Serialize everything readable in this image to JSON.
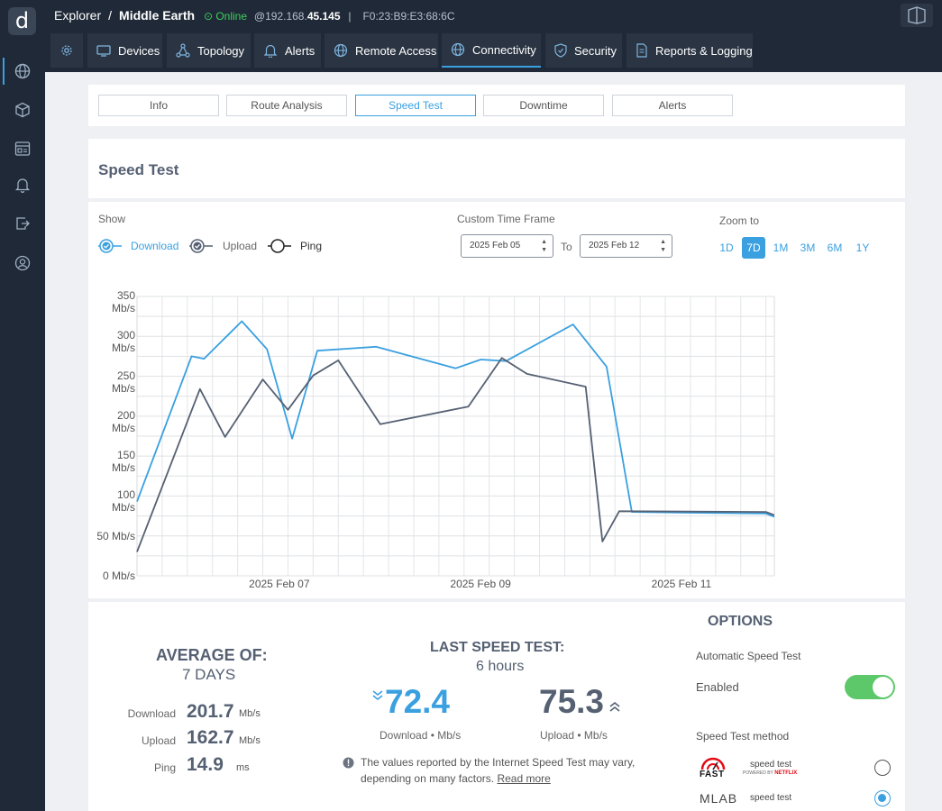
{
  "header": {
    "app": "Explorer",
    "separator": "/",
    "device": "Middle Earth",
    "status": "Online",
    "ip_prefix": "@192.168.",
    "ip_bold": "45.145",
    "divider": "|",
    "mac": "F0:23:B9:E3:68:6C"
  },
  "nav_tabs": [
    {
      "label": "",
      "icon": "gear-icon"
    },
    {
      "label": "Devices",
      "icon": "devices-icon"
    },
    {
      "label": "Topology",
      "icon": "topology-icon"
    },
    {
      "label": "Alerts",
      "icon": "bell-icon"
    },
    {
      "label": "Remote Access",
      "icon": "globe-icon"
    },
    {
      "label": "Connectivity",
      "icon": "globe-icon",
      "active": true
    },
    {
      "label": "Security",
      "icon": "shield-icon"
    },
    {
      "label": "Reports & Logging",
      "icon": "report-icon"
    }
  ],
  "sidebar": [
    "globe-icon",
    "cube-icon",
    "dashboard-icon",
    "bell-icon",
    "export-icon",
    "user-circle-icon"
  ],
  "subtabs": [
    "Info",
    "Route Analysis",
    "Speed Test",
    "Downtime",
    "Alerts"
  ],
  "active_subtab": "Speed Test",
  "section_title": "Speed Test",
  "controls": {
    "show_label": "Show",
    "download": "Download",
    "upload": "Upload",
    "ping": "Ping",
    "time_frame_label": "Custom Time Frame",
    "from_date": "2025 Feb 05",
    "to_label": "To",
    "to_date": "2025 Feb 12",
    "zoom_label": "Zoom to",
    "zoom_options": [
      "1D",
      "7D",
      "1M",
      "3M",
      "6M",
      "1Y"
    ],
    "zoom_active": "7D"
  },
  "chart_data": {
    "type": "line",
    "y_ticks": [
      {
        "v": 350,
        "text": "350\nMb/s"
      },
      {
        "v": 300,
        "text": "300\nMb/s"
      },
      {
        "v": 250,
        "text": "250\nMb/s"
      },
      {
        "v": 200,
        "text": "200\nMb/s"
      },
      {
        "v": 150,
        "text": "150\nMb/s"
      },
      {
        "v": 100,
        "text": "100\nMb/s"
      },
      {
        "v": 50,
        "text": "50 Mb/s"
      },
      {
        "v": 0,
        "text": "0 Mb/s"
      }
    ],
    "ylim": [
      0,
      350
    ],
    "xlim": [
      "2025-02-05 14:00",
      "2025-02-11 22:00"
    ],
    "x_ticks": [
      {
        "x": "2025-02-07 00:00",
        "text": "2025 Feb 07"
      },
      {
        "x": "2025-02-09 00:00",
        "text": "2025 Feb 09"
      },
      {
        "x": "2025-02-11 00:00",
        "text": "2025 Feb 11"
      }
    ],
    "series": [
      {
        "name": "Download",
        "color": "#3aa0e0",
        "points": [
          [
            "2025-02-05 14:00",
            93
          ],
          [
            "2025-02-06 03:00",
            275
          ],
          [
            "2025-02-06 06:00",
            272
          ],
          [
            "2025-02-06 15:00",
            319
          ],
          [
            "2025-02-06 21:00",
            284
          ],
          [
            "2025-02-07 03:00",
            172
          ],
          [
            "2025-02-07 09:00",
            282
          ],
          [
            "2025-02-07 23:00",
            287
          ],
          [
            "2025-02-08 18:00",
            260
          ],
          [
            "2025-02-09 00:00",
            271
          ],
          [
            "2025-02-09 06:00",
            269
          ],
          [
            "2025-02-09 22:00",
            315
          ],
          [
            "2025-02-10 06:00",
            262
          ],
          [
            "2025-02-10 12:00",
            80
          ],
          [
            "2025-02-11 02:00",
            79
          ],
          [
            "2025-02-11 20:00",
            78
          ],
          [
            "2025-02-11 22:00",
            74
          ]
        ]
      },
      {
        "name": "Upload",
        "color": "#556072",
        "points": [
          [
            "2025-02-05 14:00",
            30
          ],
          [
            "2025-02-06 05:00",
            234
          ],
          [
            "2025-02-06 11:00",
            174
          ],
          [
            "2025-02-06 20:00",
            246
          ],
          [
            "2025-02-07 02:00",
            208
          ],
          [
            "2025-02-07 08:00",
            251
          ],
          [
            "2025-02-07 14:00",
            270
          ],
          [
            "2025-02-08 00:00",
            190
          ],
          [
            "2025-02-08 21:00",
            212
          ],
          [
            "2025-02-09 05:00",
            273
          ],
          [
            "2025-02-09 11:00",
            253
          ],
          [
            "2025-02-10 01:00",
            237
          ],
          [
            "2025-02-10 05:00",
            43
          ],
          [
            "2025-02-10 09:00",
            81
          ],
          [
            "2025-02-11 20:00",
            80
          ],
          [
            "2025-02-11 22:00",
            76
          ]
        ]
      }
    ]
  },
  "summary": {
    "avg_title": "AVERAGE OF:",
    "avg_period": "7 DAYS",
    "rows": [
      {
        "label": "Download",
        "value": "201.7",
        "unit": "Mb/s"
      },
      {
        "label": "Upload",
        "value": "162.7",
        "unit": "Mb/s"
      },
      {
        "label": "Ping",
        "value": "14.9",
        "unit": "ms"
      }
    ],
    "last_title": "LAST SPEED TEST:",
    "last_ago": "6 hours",
    "last_download": "72.4",
    "last_download_label": "Download • Mb/s",
    "last_upload": "75.3",
    "last_upload_label": "Upload • Mb/s",
    "note": "The values reported by the Internet Speed Test may vary,",
    "note2": "depending on many factors.",
    "read_more": "Read more"
  },
  "options": {
    "title": "OPTIONS",
    "auto_label": "Automatic Speed Test",
    "enabled_label": "Enabled",
    "enabled": true,
    "method_label": "Speed Test method",
    "methods": [
      {
        "name": "FAST",
        "caption": "speed test",
        "powered": "POWERED BY",
        "brand": "NETFLIX",
        "selected": false
      },
      {
        "name": "MLAB",
        "caption": "speed test",
        "selected": true
      }
    ]
  },
  "colors": {
    "accent": "#3aa0e0",
    "upload": "#556072",
    "toggle": "#5cc86a",
    "fast": "#e50914",
    "online": "#3ecf5c"
  }
}
